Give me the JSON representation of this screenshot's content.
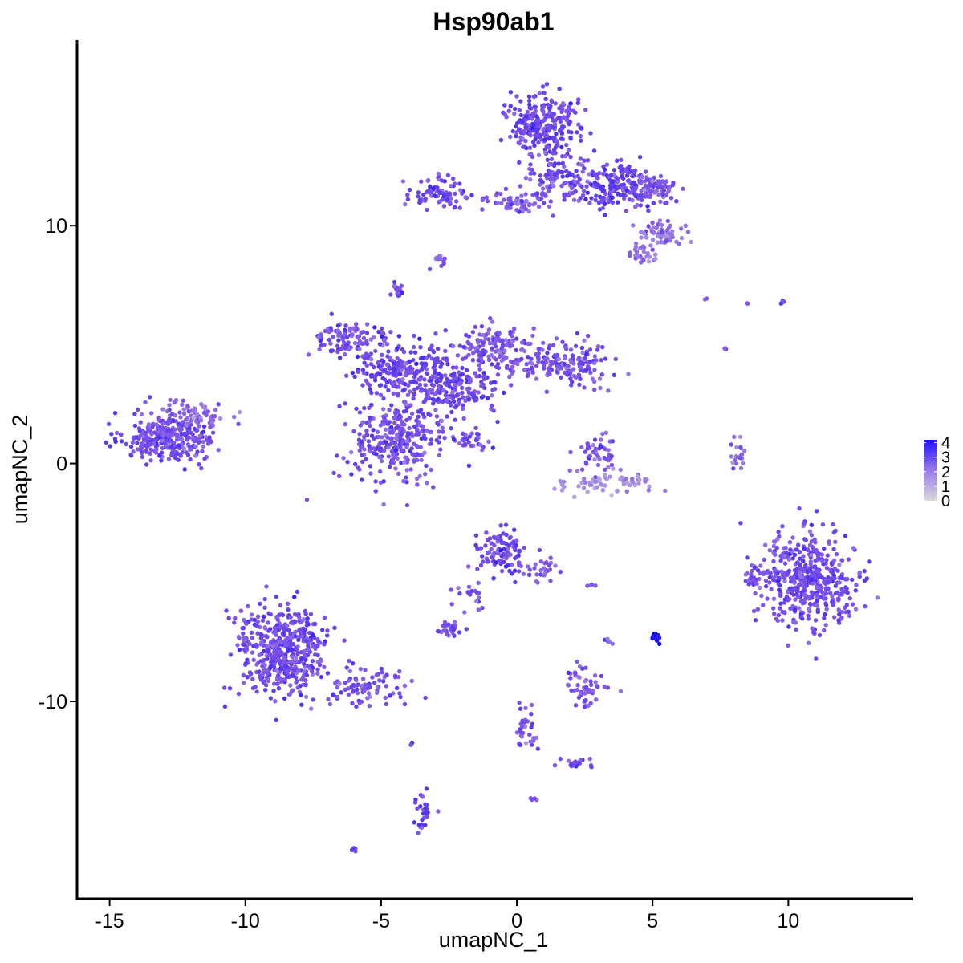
{
  "chart_data": {
    "type": "scatter",
    "title": "Hsp90ab1",
    "xlabel": "umapNC_1",
    "ylabel": "umapNC_2",
    "xlim": [
      -16.2,
      14.6
    ],
    "ylim": [
      -18.3,
      17.8
    ],
    "x_ticks": [
      -15,
      -10,
      -5,
      0,
      5,
      10
    ],
    "x_tick_labels": [
      "-15",
      "-10",
      "-5",
      "0",
      "5",
      "10"
    ],
    "y_ticks": [
      -10,
      0,
      10
    ],
    "y_tick_labels": [
      "-10",
      "0",
      "10"
    ],
    "grid": false,
    "legend": {
      "position": "right",
      "type": "colorbar",
      "min": 0,
      "max": 4.2,
      "ticks": [
        0,
        1,
        2,
        3,
        4
      ],
      "tick_labels": [
        "0",
        "1",
        "2",
        "3",
        "4"
      ]
    },
    "colors": {
      "low": "#d9d9d9",
      "mid": "#7b4fe8",
      "high": "#0000ff"
    },
    "clusters": [
      {
        "center": [
          -12.8,
          1.1
        ],
        "spread": [
          1.1,
          0.7
        ],
        "n": 320,
        "expr": 2.4
      },
      {
        "center": [
          -11.8,
          2.0
        ],
        "spread": [
          0.7,
          0.5
        ],
        "n": 60,
        "expr": 1.9
      },
      {
        "center": [
          -6.0,
          5.2
        ],
        "spread": [
          0.9,
          0.5
        ],
        "n": 110,
        "expr": 2.3
      },
      {
        "center": [
          -4.2,
          4.0
        ],
        "spread": [
          1.2,
          0.7
        ],
        "n": 200,
        "expr": 2.5
      },
      {
        "center": [
          -4.5,
          1.0
        ],
        "spread": [
          1.1,
          1.2
        ],
        "n": 300,
        "expr": 2.4
      },
      {
        "center": [
          -2.5,
          3.0
        ],
        "spread": [
          1.3,
          0.9
        ],
        "n": 200,
        "expr": 2.5
      },
      {
        "center": [
          -0.8,
          4.8
        ],
        "spread": [
          0.9,
          0.8
        ],
        "n": 150,
        "expr": 2.2
      },
      {
        "center": [
          1.8,
          4.2
        ],
        "spread": [
          1.1,
          0.6
        ],
        "n": 160,
        "expr": 2.3
      },
      {
        "center": [
          -4.4,
          7.3
        ],
        "spread": [
          0.15,
          0.2
        ],
        "n": 20,
        "expr": 2.6
      },
      {
        "center": [
          -1.6,
          1.0
        ],
        "spread": [
          0.45,
          0.35
        ],
        "n": 30,
        "expr": 2.3
      },
      {
        "center": [
          -2.9,
          11.3
        ],
        "spread": [
          0.7,
          0.5
        ],
        "n": 90,
        "expr": 2.4
      },
      {
        "center": [
          0.0,
          11.0
        ],
        "spread": [
          0.9,
          0.3
        ],
        "n": 60,
        "expr": 2.2
      },
      {
        "center": [
          1.0,
          14.3
        ],
        "spread": [
          0.9,
          0.8
        ],
        "n": 250,
        "expr": 2.5
      },
      {
        "center": [
          1.5,
          12.0
        ],
        "spread": [
          0.9,
          0.7
        ],
        "n": 120,
        "expr": 2.3
      },
      {
        "center": [
          3.8,
          11.7
        ],
        "spread": [
          0.9,
          0.6
        ],
        "n": 180,
        "expr": 2.5
      },
      {
        "center": [
          5.2,
          11.6
        ],
        "spread": [
          0.5,
          0.4
        ],
        "n": 60,
        "expr": 2.2
      },
      {
        "center": [
          5.4,
          9.7
        ],
        "spread": [
          0.6,
          0.3
        ],
        "n": 60,
        "expr": 1.8
      },
      {
        "center": [
          4.6,
          8.8
        ],
        "spread": [
          0.4,
          0.3
        ],
        "n": 30,
        "expr": 1.8
      },
      {
        "center": [
          -2.9,
          8.6
        ],
        "spread": [
          0.2,
          0.2
        ],
        "n": 12,
        "expr": 2.1
      },
      {
        "center": [
          3.0,
          0.5
        ],
        "spread": [
          0.5,
          0.5
        ],
        "n": 45,
        "expr": 2.2
      },
      {
        "center": [
          3.3,
          -0.8
        ],
        "spread": [
          1.2,
          0.3
        ],
        "n": 70,
        "expr": 1.4
      },
      {
        "center": [
          8.1,
          0.4
        ],
        "spread": [
          0.25,
          0.5
        ],
        "n": 20,
        "expr": 1.9
      },
      {
        "center": [
          10.7,
          -4.9
        ],
        "spread": [
          1.1,
          1.3
        ],
        "n": 460,
        "expr": 2.4
      },
      {
        "center": [
          8.8,
          -4.8
        ],
        "spread": [
          0.3,
          0.3
        ],
        "n": 25,
        "expr": 2.3
      },
      {
        "center": [
          -0.6,
          -3.7
        ],
        "spread": [
          0.6,
          0.6
        ],
        "n": 100,
        "expr": 2.4
      },
      {
        "center": [
          0.9,
          -4.5
        ],
        "spread": [
          0.6,
          0.4
        ],
        "n": 30,
        "expr": 2.1
      },
      {
        "center": [
          -1.7,
          -5.5
        ],
        "spread": [
          0.4,
          0.5
        ],
        "n": 20,
        "expr": 2.2
      },
      {
        "center": [
          -8.6,
          -7.9
        ],
        "spread": [
          1.1,
          1.3
        ],
        "n": 460,
        "expr": 2.4
      },
      {
        "center": [
          -5.6,
          -9.5
        ],
        "spread": [
          1.3,
          0.5
        ],
        "n": 90,
        "expr": 2.3
      },
      {
        "center": [
          -2.5,
          -7.0
        ],
        "spread": [
          0.3,
          0.2
        ],
        "n": 30,
        "expr": 2.3
      },
      {
        "center": [
          2.5,
          -9.3
        ],
        "spread": [
          0.5,
          0.6
        ],
        "n": 55,
        "expr": 2.1
      },
      {
        "center": [
          0.3,
          -11.0
        ],
        "spread": [
          0.3,
          0.8
        ],
        "n": 30,
        "expr": 2.2
      },
      {
        "center": [
          2.1,
          -12.6
        ],
        "spread": [
          0.35,
          0.15
        ],
        "n": 20,
        "expr": 2.3
      },
      {
        "center": [
          -3.5,
          -14.7
        ],
        "spread": [
          0.25,
          0.6
        ],
        "n": 28,
        "expr": 2.5
      },
      {
        "center": [
          5.1,
          -7.3
        ],
        "spread": [
          0.12,
          0.18
        ],
        "n": 14,
        "expr": 3.6
      },
      {
        "center": [
          -6.1,
          -16.2
        ],
        "spread": [
          0.1,
          0.05
        ],
        "n": 4,
        "expr": 2.3
      },
      {
        "center": [
          0.6,
          -14.1
        ],
        "spread": [
          0.1,
          0.05
        ],
        "n": 4,
        "expr": 2.2
      },
      {
        "center": [
          -3.9,
          -11.8
        ],
        "spread": [
          0.05,
          0.1
        ],
        "n": 3,
        "expr": 2.4
      },
      {
        "center": [
          3.4,
          -7.5
        ],
        "spread": [
          0.1,
          0.1
        ],
        "n": 5,
        "expr": 2.0
      },
      {
        "center": [
          2.7,
          -5.1
        ],
        "spread": [
          0.1,
          0.05
        ],
        "n": 4,
        "expr": 2.1
      },
      {
        "center": [
          7.0,
          6.9
        ],
        "spread": [
          0.05,
          0.05
        ],
        "n": 2,
        "expr": 2.2
      },
      {
        "center": [
          7.7,
          4.8
        ],
        "spread": [
          0.05,
          0.1
        ],
        "n": 3,
        "expr": 2.0
      },
      {
        "center": [
          8.5,
          6.7
        ],
        "spread": [
          0.05,
          0.05
        ],
        "n": 2,
        "expr": 2.0
      },
      {
        "center": [
          9.8,
          6.8
        ],
        "spread": [
          0.1,
          0.15
        ],
        "n": 4,
        "expr": 2.1
      }
    ]
  }
}
